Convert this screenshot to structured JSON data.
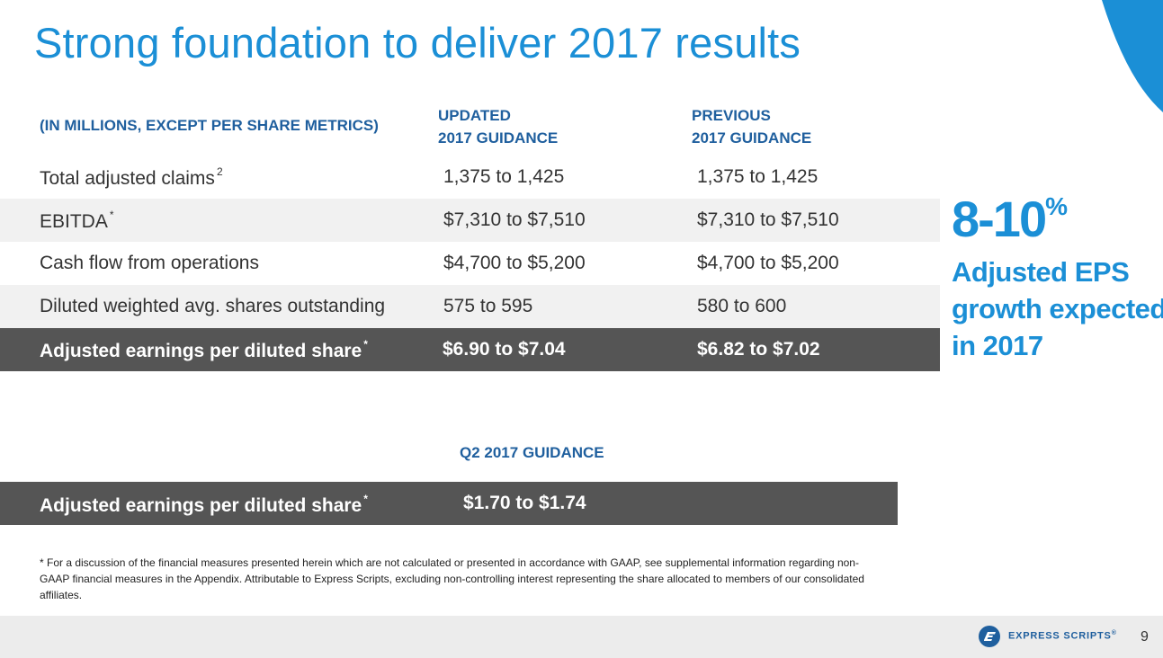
{
  "title": "Strong foundation to deliver 2017 results",
  "table": {
    "headers": {
      "units": "(IN MILLIONS, EXCEPT PER SHARE METRICS)",
      "updated_line1": "UPDATED",
      "updated_line2": "2017 GUIDANCE",
      "previous_line1": "PREVIOUS",
      "previous_line2": "2017 GUIDANCE"
    },
    "rows": [
      {
        "label": "Total adjusted claims",
        "mark": "2",
        "updated": "1,375 to 1,425",
        "previous": "1,375 to 1,425"
      },
      {
        "label": "EBITDA",
        "mark": "*",
        "updated": "$7,310 to $7,510",
        "previous": "$7,310 to $7,510"
      },
      {
        "label": "Cash flow from operations",
        "mark": "",
        "updated": "$4,700 to $5,200",
        "previous": "$4,700 to $5,200"
      },
      {
        "label": "Diluted weighted avg. shares outstanding",
        "mark": "",
        "updated": "575 to 595",
        "previous": "580 to 600"
      },
      {
        "label": "Adjusted earnings per diluted share",
        "mark": "*",
        "updated": "$6.90 to $7.04",
        "previous": "$6.82 to $7.02"
      }
    ]
  },
  "q2": {
    "header": "Q2 2017 GUIDANCE",
    "label": "Adjusted earnings per diluted share",
    "mark": "*",
    "value": "$1.70 to $1.74"
  },
  "callout": {
    "big": "8-10",
    "percent": "%",
    "line1": "Adjusted EPS",
    "line2": "growth expected",
    "line3": "in 2017"
  },
  "footnote": "* For a discussion of the financial measures presented herein which are not calculated or presented in accordance with GAAP, see supplemental information regarding non-GAAP financial measures in the Appendix. Attributable to Express Scripts, excluding non-controlling interest representing the share allocated to members of our consolidated affiliates.",
  "footer": {
    "logo_text": "EXPRESS SCRIPTS",
    "trademark": "®",
    "page_number": "9"
  },
  "colors": {
    "accent_blue": "#1b8fd6",
    "header_navy": "#1f5f9e",
    "dark_row": "#555555",
    "alt_row": "#f1f1f1"
  }
}
